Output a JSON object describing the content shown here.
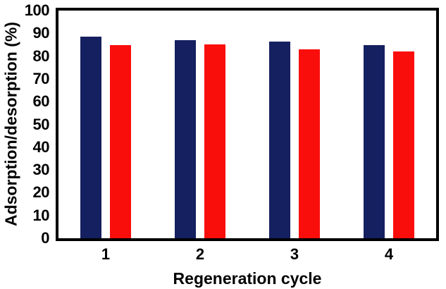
{
  "figure": {
    "background": "#ffffff",
    "frame_color": "#000000"
  },
  "chart_data": {
    "type": "bar",
    "title": "",
    "xlabel": "Regeneration cycle",
    "ylabel": "Adsorption/desorption (%)",
    "categories": [
      "1",
      "2",
      "3",
      "4"
    ],
    "series": [
      {
        "key": "adsorption-navy",
        "name": "Adsorption (navy bars)",
        "color": "#152060",
        "values": [
          88.6,
          86.9,
          86.3,
          84.7
        ]
      },
      {
        "key": "desorption-red",
        "name": "Desorption (red bars)",
        "color": "#fa0e0c",
        "values": [
          84.9,
          85.1,
          83.0,
          82.1
        ]
      }
    ],
    "ylim": [
      0,
      100
    ],
    "ytick_step": 10,
    "yticks": [
      "0",
      "10",
      "20",
      "30",
      "40",
      "50",
      "60",
      "70",
      "80",
      "90",
      "100"
    ],
    "grid": false,
    "legend": "none",
    "axis_color": "#000000",
    "tick_label_weight": "bold"
  }
}
